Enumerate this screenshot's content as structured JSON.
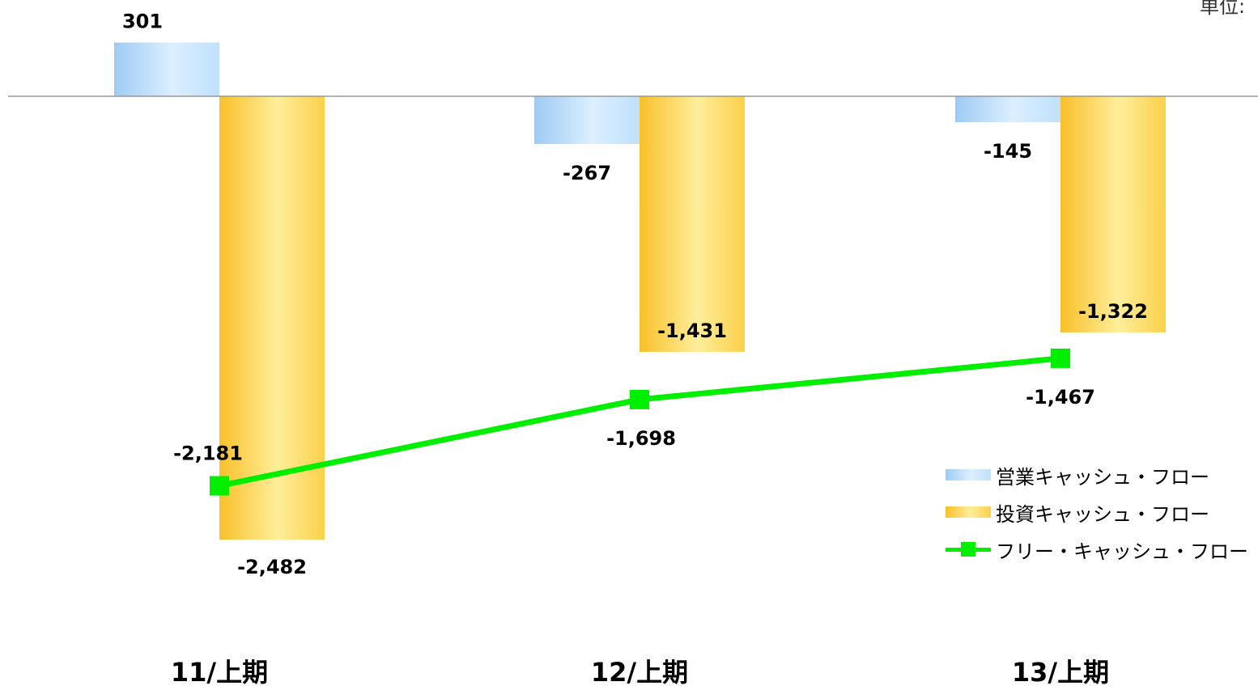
{
  "unit_label": "単位:",
  "colors": {
    "operating": "#b8dcfa",
    "investing": "#fdd547",
    "free": "#00ee00",
    "baseline": "#999999"
  },
  "chart_data": {
    "type": "bar",
    "categories": [
      "11/上期",
      "12/上期",
      "13/上期"
    ],
    "series": [
      {
        "name": "営業キャッシュ・フロー",
        "kind": "bar",
        "values": [
          301,
          -267,
          -145
        ],
        "labels": [
          "301",
          "-267",
          "-145"
        ]
      },
      {
        "name": "投資キャッシュ・フロー",
        "kind": "bar",
        "values": [
          -2482,
          -1431,
          -1322
        ],
        "labels": [
          "-2,482",
          "-1,431",
          "-1,322"
        ]
      },
      {
        "name": "フリー・キャッシュ・フロー",
        "kind": "line",
        "values": [
          -2181,
          -1698,
          -1467
        ],
        "labels": [
          "-2,181",
          "-1,698",
          "-1,467"
        ]
      }
    ],
    "ylim": [
      -2750,
      350
    ],
    "grid": false,
    "legend_position": "bottom-right"
  }
}
